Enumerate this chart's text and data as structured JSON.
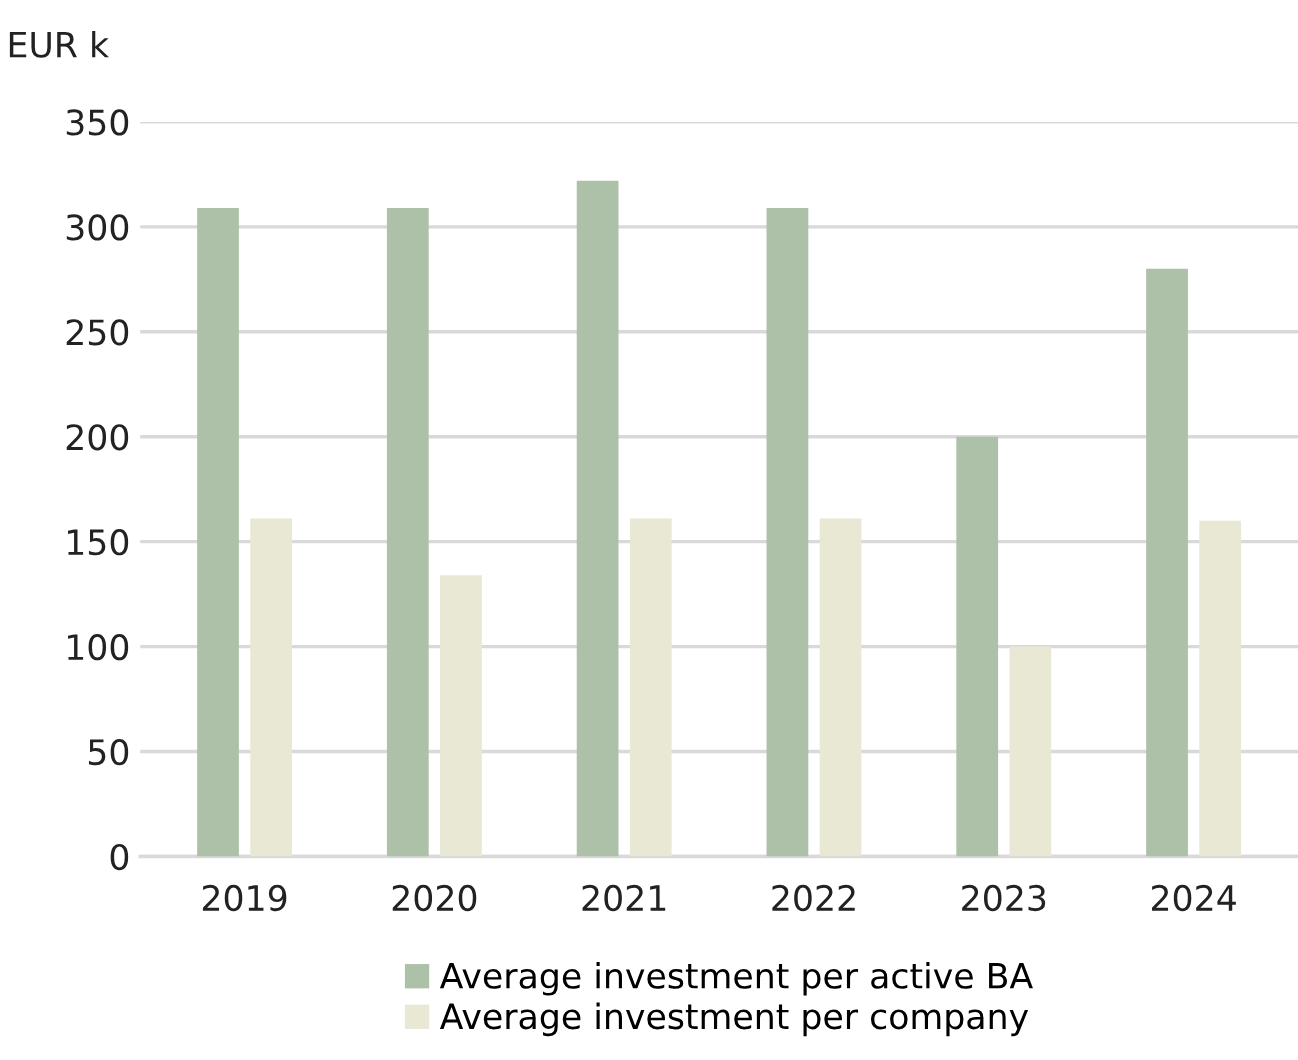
{
  "chart_data": {
    "type": "bar",
    "ylabel": "EUR k",
    "categories": [
      "2019",
      "2020",
      "2021",
      "2022",
      "2023",
      "2024"
    ],
    "series": [
      {
        "name": "Average investment per active BA",
        "color": "#adc0a8",
        "values": [
          309,
          309,
          322,
          309,
          200,
          280
        ]
      },
      {
        "name": "Average investment per company",
        "color": "#e9e8d4",
        "values": [
          161,
          134,
          161,
          161,
          100,
          160
        ]
      }
    ],
    "ylim": [
      0,
      350
    ],
    "yticks": [
      0,
      50,
      100,
      150,
      200,
      250,
      300,
      350
    ],
    "grid": "y",
    "legend": "bottom"
  }
}
